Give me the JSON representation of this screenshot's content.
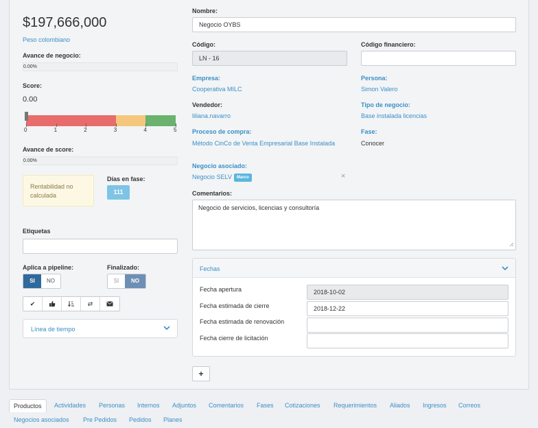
{
  "left": {
    "amount": "$197,666,000",
    "currency": "Peso colombiano",
    "avance_negocio_label": "Avance de negocio:",
    "avance_negocio_value": "0.00%",
    "avance_negocio_fraction": 0.0,
    "score_label": "Score:",
    "score_value": "0.00",
    "score_ticks": [
      "0",
      "1",
      "2",
      "3",
      "4",
      "5"
    ],
    "score_colors": {
      "red": "#e86c6c",
      "yellow": "#f5c77c",
      "green": "#6ab26e"
    },
    "avance_score_label": "Avance de score:",
    "avance_score_value": "0.00%",
    "rentabilidad": "Rentabilidad no calculada",
    "dias_label": "Días en fase:",
    "dias_value": "111",
    "etiquetas_label": "Etiquetas",
    "etiquetas_value": "",
    "pipeline_label": "Aplica a pipeline:",
    "pipeline_si": "SI",
    "pipeline_no": "NO",
    "finalizado_label": "Finalizado:",
    "finalizado_si": "SI",
    "finalizado_no": "NO",
    "toolbar_icons": [
      "check-icon",
      "thumbs-up-icon",
      "sort-icon",
      "exchange-icon",
      "envelope-icon"
    ],
    "linea_tiempo": "Línea de tiempo"
  },
  "right": {
    "nombre_label": "Nombre:",
    "nombre_value": "Negocio OYBS",
    "codigo_label": "Código:",
    "codigo_value": "LN - 16",
    "codigo_fin_label": "Código financiero:",
    "codigo_fin_value": "",
    "empresa_label": "Empresa:",
    "empresa_value": "Cooperativa MILC",
    "persona_label": "Persona:",
    "persona_value": "Simon Valero",
    "vendedor_label": "Vendedor:",
    "vendedor_value": "liliana.navarro",
    "tipo_label": "Tipo de negocio:",
    "tipo_value": "Base instalada licencias",
    "proceso_label": "Proceso de compra:",
    "proceso_value": "Método CinCo de Venta Empresarial Base Instalada",
    "fase_label": "Fase:",
    "fase_value": "Conocer",
    "asociado_label": "Negocio asociado:",
    "asociado_value": "Negocio SELV",
    "asociado_badge": "Marco",
    "comentarios_label": "Comentarios:",
    "comentarios_value": "Negocio de servicios, licencias y consultoría",
    "fechas_title": "Fechas",
    "fechas": [
      {
        "label": "Fecha apertura",
        "value": "2018-10-02"
      },
      {
        "label": "Fecha estimada de cierre",
        "value": "2018-12-22"
      },
      {
        "label": "Fecha estimada de renovación",
        "value": ""
      },
      {
        "label": "Fecha cierre de licitación",
        "value": ""
      }
    ],
    "add_label": "+"
  },
  "tabs": [
    "Productos",
    "Actividades",
    "Personas",
    "Internos",
    "Adjuntos",
    "Comentarios",
    "Fases",
    "Cotizaciones",
    "Requerimientos",
    "Aliados",
    "Ingresos",
    "Correos",
    "Negocios asociados",
    "Pre Pedidos",
    "Pedidos",
    "Planes"
  ]
}
